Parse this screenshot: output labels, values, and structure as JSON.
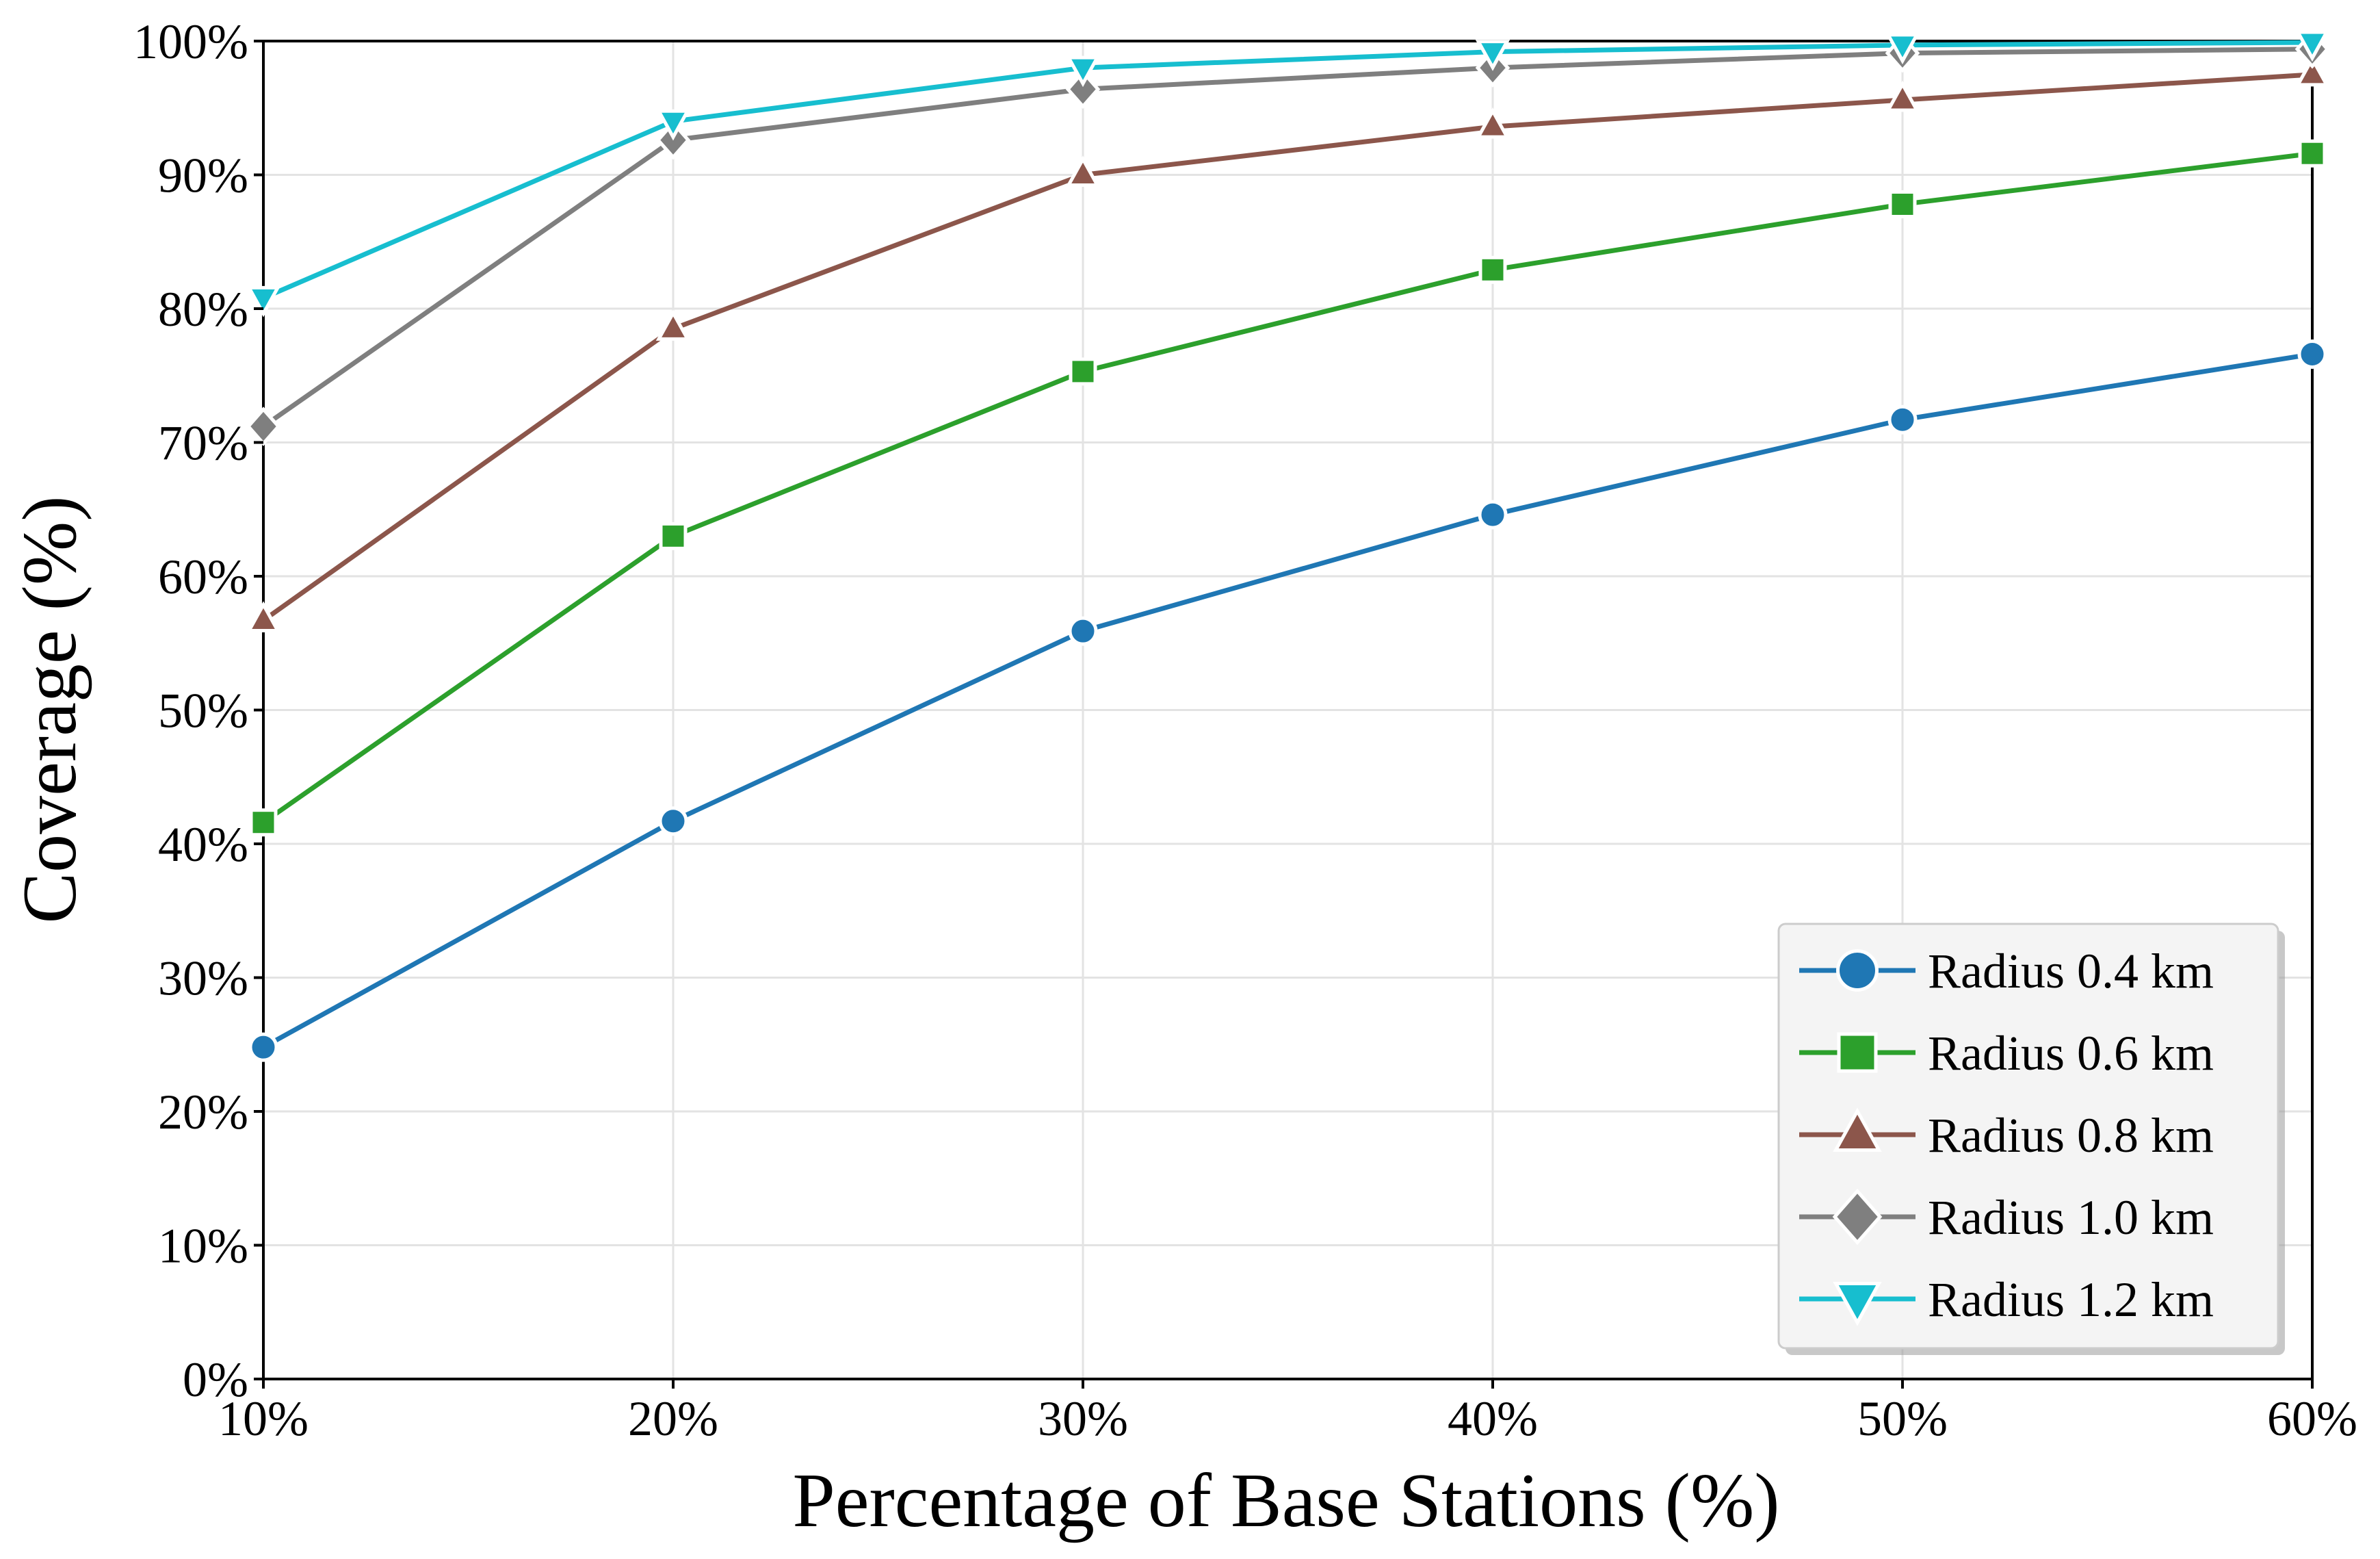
{
  "chart_data": {
    "type": "line",
    "title": "",
    "xlabel": "Percentage of Base Stations (%)",
    "ylabel": "Coverage (%)",
    "x": [
      10,
      20,
      30,
      40,
      50,
      60
    ],
    "x_tick_labels": [
      "10%",
      "20%",
      "30%",
      "40%",
      "50%",
      "60%"
    ],
    "xlim": [
      10,
      60
    ],
    "ylim": [
      0,
      100
    ],
    "y_ticks": [
      0,
      10,
      20,
      30,
      40,
      50,
      60,
      70,
      80,
      90,
      100
    ],
    "y_tick_labels": [
      "0%",
      "10%",
      "20%",
      "30%",
      "40%",
      "50%",
      "60%",
      "70%",
      "80%",
      "90%",
      "100%"
    ],
    "grid": true,
    "legend_position": "bottom-right",
    "series": [
      {
        "name": "Radius 0.4 km",
        "color": "#1f77b4",
        "marker": "circle",
        "values": [
          24.8,
          41.7,
          55.9,
          64.6,
          71.7,
          76.6
        ]
      },
      {
        "name": "Radius 0.6 km",
        "color": "#2ca02c",
        "marker": "square",
        "values": [
          41.6,
          63.0,
          75.3,
          82.9,
          87.8,
          91.6
        ]
      },
      {
        "name": "Radius 0.8 km",
        "color": "#8c564b",
        "marker": "triangle-up",
        "values": [
          56.7,
          78.5,
          90.0,
          93.6,
          95.6,
          97.5
        ]
      },
      {
        "name": "Radius 1.0 km",
        "color": "#7f7f7f",
        "marker": "diamond",
        "values": [
          71.2,
          92.6,
          96.4,
          98.0,
          99.1,
          99.4
        ]
      },
      {
        "name": "Radius 1.2 km",
        "color": "#17becf",
        "marker": "triangle-down",
        "values": [
          80.8,
          94.0,
          98.0,
          99.2,
          99.7,
          99.9
        ]
      }
    ]
  }
}
